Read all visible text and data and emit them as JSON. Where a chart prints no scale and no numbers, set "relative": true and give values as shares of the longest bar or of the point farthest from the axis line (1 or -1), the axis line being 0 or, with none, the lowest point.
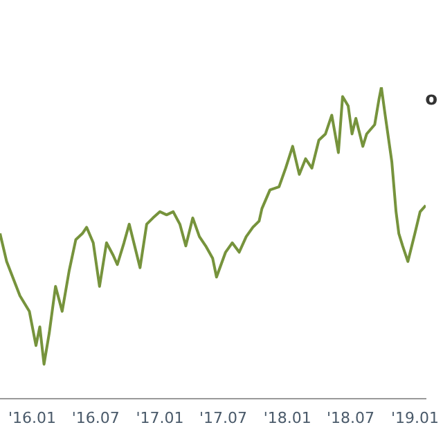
{
  "chart_data": {
    "type": "line",
    "relative": true,
    "color": "#76933c",
    "annotations": [
      "o"
    ],
    "xlim": [
      "2015-10-01",
      "2019-02-01"
    ],
    "xticks": [
      {
        "value": "2016-01-01",
        "label": "'16.01"
      },
      {
        "value": "2016-07-01",
        "label": "'16.07"
      },
      {
        "value": "2017-01-01",
        "label": "'17.01"
      },
      {
        "value": "2017-07-01",
        "label": "'17.07"
      },
      {
        "value": "2018-01-01",
        "label": "'18.01"
      },
      {
        "value": "2018-07-01",
        "label": "'18.07"
      },
      {
        "value": "2019-01-01",
        "label": "'19.01"
      }
    ],
    "x": [
      "2015-10-01",
      "2015-10-20",
      "2015-11-27",
      "2015-12-24",
      "2016-01-12",
      "2016-01-23",
      "2016-02-04",
      "2016-02-19",
      "2016-03-08",
      "2016-03-27",
      "2016-04-16",
      "2016-05-05",
      "2016-05-24",
      "2016-06-05",
      "2016-06-24",
      "2016-07-12",
      "2016-08-01",
      "2016-08-20",
      "2016-09-01",
      "2016-09-20",
      "2016-10-05",
      "2016-11-05",
      "2016-11-24",
      "2016-12-12",
      "2017-01-01",
      "2017-01-20",
      "2017-02-08",
      "2017-02-27",
      "2017-03-16",
      "2017-04-05",
      "2017-04-24",
      "2017-05-12",
      "2017-06-01",
      "2017-06-12",
      "2017-07-08",
      "2017-07-27",
      "2017-08-16",
      "2017-09-05",
      "2017-09-24",
      "2017-10-12",
      "2017-10-20",
      "2017-11-12",
      "2017-12-08",
      "2017-12-27",
      "2018-01-16",
      "2018-02-04",
      "2018-02-22",
      "2018-03-12",
      "2018-04-01",
      "2018-04-20",
      "2018-05-08",
      "2018-05-27",
      "2018-06-08",
      "2018-06-24",
      "2018-07-05",
      "2018-07-16",
      "2018-08-05",
      "2018-08-16",
      "2018-09-08",
      "2018-09-20",
      "2018-09-27",
      "2018-10-08",
      "2018-10-27",
      "2018-11-08",
      "2018-11-16",
      "2018-11-27",
      "2018-12-12",
      "2019-01-01",
      "2019-01-16",
      "2019-02-01"
    ],
    "values": [
      0.53,
      0.44,
      0.33,
      0.28,
      0.17,
      0.23,
      0.11,
      0.21,
      0.36,
      0.28,
      0.41,
      0.51,
      0.53,
      0.55,
      0.5,
      0.36,
      0.5,
      0.46,
      0.43,
      0.5,
      0.56,
      0.42,
      0.56,
      0.58,
      0.6,
      0.59,
      0.6,
      0.56,
      0.49,
      0.58,
      0.52,
      0.49,
      0.45,
      0.39,
      0.47,
      0.5,
      0.47,
      0.52,
      0.55,
      0.57,
      0.61,
      0.67,
      0.68,
      0.74,
      0.81,
      0.72,
      0.77,
      0.74,
      0.83,
      0.85,
      0.91,
      0.79,
      0.97,
      0.94,
      0.85,
      0.9,
      0.81,
      0.85,
      0.88,
      0.96,
      1,
      0.91,
      0.76,
      0.6,
      0.53,
      0.49,
      0.44,
      0.53,
      0.6,
      0.62
    ]
  }
}
